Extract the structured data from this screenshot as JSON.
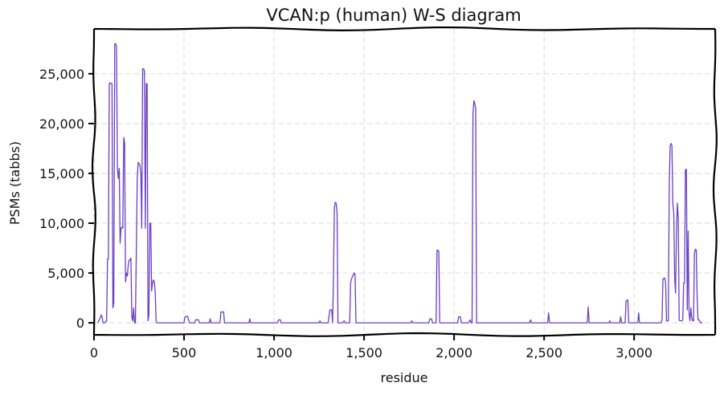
{
  "chart_data": {
    "type": "line",
    "title": "VCAN:p (human) W-S diagram",
    "xlabel": "residue",
    "ylabel": "PSMs (tabbs)",
    "xlim": [
      0,
      3450
    ],
    "ylim": [
      -1200,
      29500
    ],
    "grid": true,
    "x_ticks": [
      0,
      500,
      1000,
      1500,
      2000,
      2500,
      3000
    ],
    "x_tick_labels": [
      "0",
      "500",
      "1,000",
      "1,500",
      "2,000",
      "2,500",
      "3,000"
    ],
    "y_ticks": [
      0,
      5000,
      10000,
      15000,
      20000,
      25000
    ],
    "y_tick_labels": [
      "0",
      "5,000",
      "10,000",
      "15,000",
      "20,000",
      "25,000"
    ],
    "series": [
      {
        "color": "#6a3fc4",
        "points": [
          [
            20,
            0
          ],
          [
            30,
            300
          ],
          [
            40,
            800
          ],
          [
            45,
            600
          ],
          [
            50,
            0
          ],
          [
            60,
            0
          ],
          [
            70,
            200
          ],
          [
            75,
            6400
          ],
          [
            80,
            6400
          ],
          [
            85,
            24000
          ],
          [
            90,
            24100
          ],
          [
            95,
            24000
          ],
          [
            100,
            24000
          ],
          [
            105,
            1500
          ],
          [
            110,
            2000
          ],
          [
            115,
            28000
          ],
          [
            120,
            28000
          ],
          [
            125,
            27800
          ],
          [
            130,
            15500
          ],
          [
            135,
            14500
          ],
          [
            140,
            15500
          ],
          [
            145,
            8000
          ],
          [
            150,
            9500
          ],
          [
            155,
            9600
          ],
          [
            160,
            9500
          ],
          [
            165,
            18600
          ],
          [
            170,
            18000
          ],
          [
            175,
            4100
          ],
          [
            180,
            5000
          ],
          [
            185,
            4700
          ],
          [
            190,
            5800
          ],
          [
            195,
            6300
          ],
          [
            200,
            6300
          ],
          [
            205,
            6500
          ],
          [
            210,
            500
          ],
          [
            215,
            200
          ],
          [
            220,
            1500
          ],
          [
            225,
            0
          ],
          [
            230,
            0
          ],
          [
            240,
            14500
          ],
          [
            245,
            16100
          ],
          [
            250,
            16000
          ],
          [
            255,
            15800
          ],
          [
            260,
            15000
          ],
          [
            265,
            9500
          ],
          [
            270,
            25500
          ],
          [
            275,
            25500
          ],
          [
            280,
            25300
          ],
          [
            285,
            9500
          ],
          [
            290,
            24000
          ],
          [
            295,
            24000
          ],
          [
            300,
            200
          ],
          [
            305,
            800
          ],
          [
            310,
            10000
          ],
          [
            315,
            10000
          ],
          [
            320,
            3200
          ],
          [
            325,
            4000
          ],
          [
            330,
            4300
          ],
          [
            335,
            4100
          ],
          [
            340,
            3000
          ],
          [
            345,
            100
          ],
          [
            350,
            0
          ],
          [
            360,
            0
          ],
          [
            400,
            0
          ],
          [
            500,
            0
          ],
          [
            505,
            600
          ],
          [
            520,
            650
          ],
          [
            530,
            0
          ],
          [
            560,
            0
          ],
          [
            565,
            300
          ],
          [
            580,
            300
          ],
          [
            585,
            0
          ],
          [
            640,
            0
          ],
          [
            645,
            400
          ],
          [
            650,
            0
          ],
          [
            700,
            0
          ],
          [
            705,
            1100
          ],
          [
            720,
            1100
          ],
          [
            725,
            0
          ],
          [
            800,
            0
          ],
          [
            860,
            0
          ],
          [
            865,
            400
          ],
          [
            870,
            0
          ],
          [
            900,
            0
          ],
          [
            1000,
            0
          ],
          [
            1020,
            0
          ],
          [
            1025,
            300
          ],
          [
            1035,
            300
          ],
          [
            1040,
            0
          ],
          [
            1100,
            0
          ],
          [
            1200,
            0
          ],
          [
            1250,
            0
          ],
          [
            1255,
            200
          ],
          [
            1260,
            0
          ],
          [
            1300,
            0
          ],
          [
            1310,
            1300
          ],
          [
            1320,
            1300
          ],
          [
            1325,
            0
          ],
          [
            1330,
            4500
          ],
          [
            1335,
            11500
          ],
          [
            1340,
            12100
          ],
          [
            1345,
            12000
          ],
          [
            1350,
            11000
          ],
          [
            1355,
            0
          ],
          [
            1380,
            0
          ],
          [
            1390,
            200
          ],
          [
            1395,
            0
          ],
          [
            1400,
            0
          ],
          [
            1420,
            0
          ],
          [
            1425,
            4000
          ],
          [
            1430,
            4400
          ],
          [
            1440,
            4800
          ],
          [
            1445,
            5000
          ],
          [
            1450,
            4800
          ],
          [
            1455,
            0
          ],
          [
            1500,
            0
          ],
          [
            1600,
            0
          ],
          [
            1700,
            0
          ],
          [
            1760,
            0
          ],
          [
            1765,
            200
          ],
          [
            1770,
            0
          ],
          [
            1800,
            0
          ],
          [
            1850,
            0
          ],
          [
            1860,
            0
          ],
          [
            1865,
            400
          ],
          [
            1875,
            400
          ],
          [
            1880,
            0
          ],
          [
            1900,
            0
          ],
          [
            1905,
            7300
          ],
          [
            1915,
            7200
          ],
          [
            1920,
            0
          ],
          [
            2000,
            0
          ],
          [
            2020,
            0
          ],
          [
            2025,
            600
          ],
          [
            2035,
            600
          ],
          [
            2040,
            0
          ],
          [
            2080,
            0
          ],
          [
            2090,
            300
          ],
          [
            2095,
            0
          ],
          [
            2100,
            0
          ],
          [
            2105,
            21000
          ],
          [
            2110,
            22300
          ],
          [
            2115,
            22000
          ],
          [
            2120,
            21500
          ],
          [
            2125,
            0
          ],
          [
            2200,
            0
          ],
          [
            2300,
            0
          ],
          [
            2400,
            0
          ],
          [
            2420,
            0
          ],
          [
            2425,
            300
          ],
          [
            2430,
            0
          ],
          [
            2500,
            0
          ],
          [
            2520,
            0
          ],
          [
            2525,
            1000
          ],
          [
            2530,
            0
          ],
          [
            2600,
            0
          ],
          [
            2700,
            0
          ],
          [
            2740,
            0
          ],
          [
            2745,
            1600
          ],
          [
            2750,
            0
          ],
          [
            2800,
            0
          ],
          [
            2860,
            0
          ],
          [
            2865,
            200
          ],
          [
            2870,
            0
          ],
          [
            2900,
            0
          ],
          [
            2920,
            0
          ],
          [
            2925,
            600
          ],
          [
            2930,
            0
          ],
          [
            2950,
            0
          ],
          [
            2955,
            2200
          ],
          [
            2965,
            2300
          ],
          [
            2970,
            0
          ],
          [
            3000,
            0
          ],
          [
            3020,
            0
          ],
          [
            3025,
            1000
          ],
          [
            3030,
            0
          ],
          [
            3100,
            0
          ],
          [
            3150,
            0
          ],
          [
            3155,
            300
          ],
          [
            3160,
            4400
          ],
          [
            3170,
            4500
          ],
          [
            3175,
            4000
          ],
          [
            3180,
            200
          ],
          [
            3185,
            200
          ],
          [
            3190,
            200
          ],
          [
            3195,
            14000
          ],
          [
            3200,
            17800
          ],
          [
            3205,
            18000
          ],
          [
            3210,
            17800
          ],
          [
            3215,
            12000
          ],
          [
            3220,
            11000
          ],
          [
            3225,
            4500
          ],
          [
            3230,
            3000
          ],
          [
            3235,
            9000
          ],
          [
            3240,
            12000
          ],
          [
            3245,
            10500
          ],
          [
            3250,
            300
          ],
          [
            3255,
            200
          ],
          [
            3265,
            200
          ],
          [
            3270,
            300
          ],
          [
            3275,
            4000
          ],
          [
            3280,
            4000
          ],
          [
            3285,
            15400
          ],
          [
            3290,
            15400
          ],
          [
            3295,
            1300
          ],
          [
            3300,
            9200
          ],
          [
            3305,
            1000
          ],
          [
            3310,
            200
          ],
          [
            3315,
            1500
          ],
          [
            3320,
            500
          ],
          [
            3325,
            200
          ],
          [
            3330,
            200
          ],
          [
            3335,
            7000
          ],
          [
            3340,
            7400
          ],
          [
            3345,
            7300
          ],
          [
            3350,
            2500
          ],
          [
            3355,
            300
          ],
          [
            3360,
            300
          ],
          [
            3370,
            0
          ],
          [
            3380,
            0
          ]
        ]
      }
    ]
  }
}
